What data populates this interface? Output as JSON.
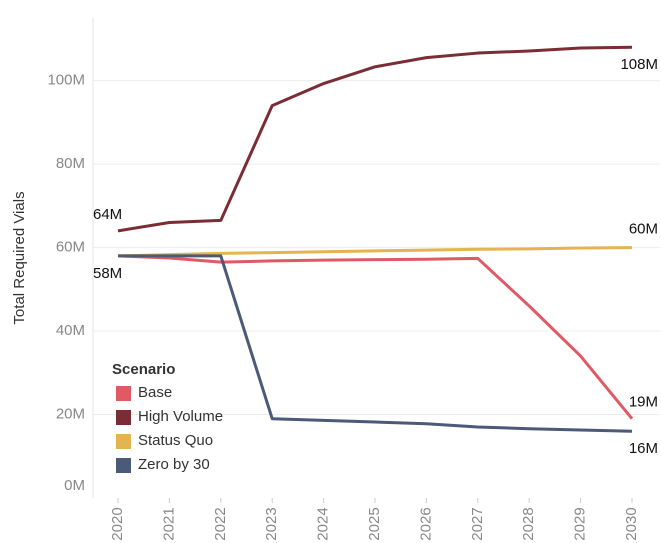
{
  "chart_data": {
    "type": "line",
    "y_label": "Total Required Vials",
    "legend_title": "Scenario",
    "x": [
      "2020",
      "2021",
      "2022",
      "2023",
      "2024",
      "2025",
      "2026",
      "2027",
      "2028",
      "2029",
      "2030"
    ],
    "ylim": [
      0,
      115
    ],
    "yticks": [
      {
        "value": 0,
        "label": "0M"
      },
      {
        "value": 20,
        "label": "20M"
      },
      {
        "value": 40,
        "label": "40M"
      },
      {
        "value": 60,
        "label": "60M"
      },
      {
        "value": 80,
        "label": "80M"
      },
      {
        "value": 100,
        "label": "100M"
      }
    ],
    "grid": true,
    "series": [
      {
        "name": "Base",
        "color": "#e05a65",
        "values": [
          58,
          57.5,
          56.5,
          56.8,
          57,
          57.1,
          57.2,
          57.4,
          46,
          34,
          19
        ],
        "value_labels": [
          null,
          null,
          null,
          null,
          null,
          null,
          null,
          null,
          null,
          null,
          "19M"
        ]
      },
      {
        "name": "High Volume",
        "color": "#7b2c35",
        "values": [
          64,
          66,
          66.5,
          94,
          99.3,
          103.3,
          105.5,
          106.6,
          107.1,
          107.8,
          108
        ],
        "value_labels": [
          "64M",
          null,
          null,
          null,
          null,
          null,
          null,
          null,
          null,
          null,
          "108M"
        ]
      },
      {
        "name": "Status Quo",
        "color": "#e4b451",
        "values": [
          58,
          58.3,
          58.6,
          58.8,
          59,
          59.2,
          59.4,
          59.6,
          59.7,
          59.9,
          60
        ],
        "value_labels": [
          "58M",
          null,
          null,
          null,
          null,
          null,
          null,
          null,
          null,
          null,
          "60M"
        ]
      },
      {
        "name": "Zero by 30",
        "color": "#4a5a78",
        "values": [
          58,
          58,
          58,
          19,
          18.6,
          18.2,
          17.8,
          17,
          16.6,
          16.3,
          16
        ],
        "value_labels": [
          null,
          null,
          null,
          null,
          null,
          null,
          null,
          null,
          null,
          null,
          "16M"
        ]
      }
    ]
  }
}
